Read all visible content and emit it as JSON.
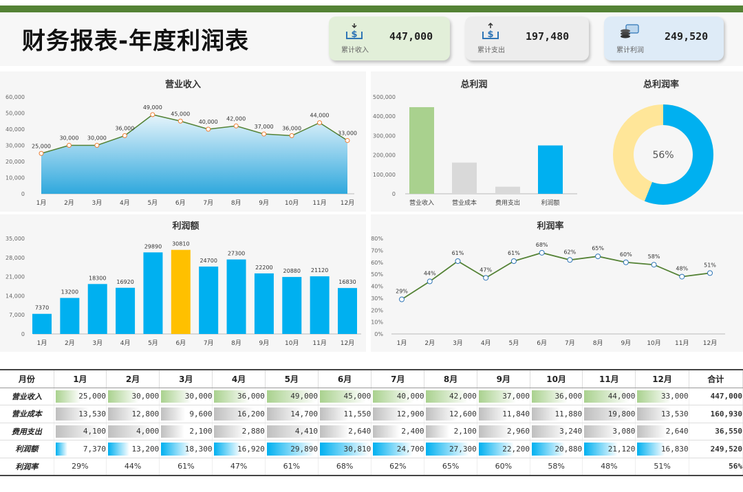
{
  "header": {
    "title": "财务报表-年度利润表",
    "kpis": [
      {
        "label": "累计收入",
        "value": "447,000",
        "icon": "dollar-in-icon",
        "bg": "#e2efd9"
      },
      {
        "label": "累计支出",
        "value": "197,480",
        "icon": "dollar-out-icon",
        "bg": "#ededed"
      },
      {
        "label": "累计利润",
        "value": "249,520",
        "icon": "card-coins-icon",
        "bg": "#deebf7"
      }
    ]
  },
  "colors": {
    "green": "#a9d18e",
    "gray": "#d9d9d9",
    "blue": "#00b0f0",
    "gold": "#ffc000",
    "line": "#548235",
    "donutRest": "#ffe699"
  },
  "chart_data": [
    {
      "id": "revenue",
      "type": "area",
      "title": "营业收入",
      "categories": [
        "1月",
        "2月",
        "3月",
        "4月",
        "5月",
        "6月",
        "7月",
        "8月",
        "9月",
        "10月",
        "11月",
        "12月"
      ],
      "values": [
        25000,
        30000,
        30000,
        36000,
        49000,
        45000,
        40000,
        42000,
        37000,
        36000,
        44000,
        33000
      ],
      "labels": [
        "25,000",
        "30,000",
        "30,000",
        "36,000",
        "49,000",
        "45,000",
        "40,000",
        "42,000",
        "37,000",
        "36,000",
        "44,000",
        "33,000"
      ],
      "ylim": [
        0,
        60000
      ],
      "yticks": [
        "0",
        "10,000",
        "20,000",
        "30,000",
        "40,000",
        "50,000",
        "60,000"
      ]
    },
    {
      "id": "total_profit",
      "type": "bar",
      "title": "总利润",
      "categories": [
        "营业收入",
        "营业成本",
        "费用支出",
        "利润额"
      ],
      "values": [
        447000,
        160930,
        36550,
        249520
      ],
      "ylim": [
        0,
        500000
      ],
      "yticks": [
        "0",
        "100,000",
        "200,000",
        "300,000",
        "400,000",
        "500,000"
      ]
    },
    {
      "id": "profit_rate_total",
      "type": "pie",
      "title": "总利润率",
      "value": 0.56,
      "label": "56%"
    },
    {
      "id": "profit",
      "type": "bar",
      "title": "利润额",
      "categories": [
        "1月",
        "2月",
        "3月",
        "4月",
        "5月",
        "6月",
        "7月",
        "8月",
        "9月",
        "10月",
        "11月",
        "12月"
      ],
      "values": [
        7370,
        13200,
        18300,
        16920,
        29890,
        30810,
        24700,
        27300,
        22200,
        20880,
        21120,
        16830
      ],
      "highlight_index": 5,
      "ylim": [
        0,
        35000
      ],
      "yticks": [
        "0",
        "7,000",
        "14,000",
        "21,000",
        "28,000",
        "35,000"
      ]
    },
    {
      "id": "profit_rate",
      "type": "line",
      "title": "利润率",
      "categories": [
        "1月",
        "2月",
        "3月",
        "4月",
        "5月",
        "6月",
        "7月",
        "8月",
        "9月",
        "10月",
        "11月",
        "12月"
      ],
      "values": [
        29,
        44,
        61,
        47,
        61,
        68,
        62,
        65,
        60,
        58,
        48,
        51
      ],
      "labels": [
        "29%",
        "44%",
        "61%",
        "47%",
        "61%",
        "68%",
        "62%",
        "65%",
        "60%",
        "58%",
        "48%",
        "51%"
      ],
      "ylim": [
        0,
        80
      ],
      "yticks": [
        "0%",
        "10%",
        "20%",
        "30%",
        "40%",
        "50%",
        "60%",
        "70%",
        "80%"
      ]
    }
  ],
  "table": {
    "headers": [
      "月份",
      "1月",
      "2月",
      "3月",
      "4月",
      "5月",
      "6月",
      "7月",
      "8月",
      "9月",
      "10月",
      "11月",
      "12月",
      "合计"
    ],
    "rows": [
      {
        "name": "营业收入",
        "color": "#a9d18e",
        "max": 49000,
        "raw": [
          25000,
          30000,
          30000,
          36000,
          49000,
          45000,
          40000,
          42000,
          37000,
          36000,
          44000,
          33000
        ],
        "cells": [
          "25,000",
          "30,000",
          "30,000",
          "36,000",
          "49,000",
          "45,000",
          "40,000",
          "42,000",
          "37,000",
          "36,000",
          "44,000",
          "33,000"
        ],
        "total": "447,000"
      },
      {
        "name": "营业成本",
        "color": "#bfbfbf",
        "max": 19800,
        "raw": [
          13530,
          12800,
          9600,
          16200,
          14700,
          11550,
          12900,
          12600,
          11840,
          11880,
          19800,
          13530
        ],
        "cells": [
          "13,530",
          "12,800",
          "9,600",
          "16,200",
          "14,700",
          "11,550",
          "12,900",
          "12,600",
          "11,840",
          "11,880",
          "19,800",
          "13,530"
        ],
        "total": "160,930"
      },
      {
        "name": "费用支出",
        "color": "#bfbfbf",
        "max": 4410,
        "raw": [
          4100,
          4000,
          2100,
          2880,
          4410,
          2640,
          2400,
          2100,
          2960,
          3240,
          3080,
          2640
        ],
        "cells": [
          "4,100",
          "4,000",
          "2,100",
          "2,880",
          "4,410",
          "2,640",
          "2,400",
          "2,100",
          "2,960",
          "3,240",
          "3,080",
          "2,640"
        ],
        "total": "36,550"
      },
      {
        "name": "利润额",
        "color": "#00b0f0",
        "max": 30810,
        "raw": [
          7370,
          13200,
          18300,
          16920,
          29890,
          30810,
          24700,
          27300,
          22200,
          20880,
          21120,
          16830
        ],
        "cells": [
          "7,370",
          "13,200",
          "18,300",
          "16,920",
          "29,890",
          "30,810",
          "24,700",
          "27,300",
          "22,200",
          "20,880",
          "21,120",
          "16,830"
        ],
        "total": "249,520"
      },
      {
        "name": "利润率",
        "color": "",
        "max": 0,
        "raw": [],
        "cells": [
          "29%",
          "44%",
          "61%",
          "47%",
          "61%",
          "68%",
          "62%",
          "65%",
          "60%",
          "58%",
          "48%",
          "51%"
        ],
        "total": "56%"
      }
    ]
  }
}
